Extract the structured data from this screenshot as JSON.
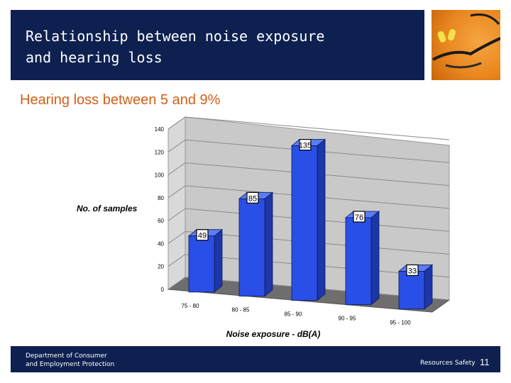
{
  "slide": {
    "title": "Relationship between noise exposure\nand hearing loss",
    "subtitle": "Hearing loss between 5 and 9%"
  },
  "footer": {
    "department": "Department of Consumer\nand Employment Protection",
    "brand": "Resources Safety",
    "page_number": "11"
  },
  "photo": {
    "icon": "safety-glasses-earplugs-icon"
  },
  "colors": {
    "header": "#0d2050",
    "subtitle": "#d35f19",
    "bar_front": "#2a4fe6",
    "bar_side": "#1d36a8",
    "bar_top": "#5b7cf2",
    "wall": "#c9c9c9",
    "floor": "#6e6e6e"
  },
  "chart_data": {
    "type": "bar",
    "categories": [
      "75 - 80",
      "80 - 85",
      "85 - 90",
      "90 - 95",
      "95 - 100"
    ],
    "values": [
      49,
      85,
      135,
      76,
      33
    ],
    "xlabel": "Noise exposure - dB(A)",
    "ylabel": "No. of samples",
    "ylim": [
      0,
      140
    ],
    "yticks": [
      0,
      20,
      40,
      60,
      80,
      100,
      120,
      140
    ],
    "grid": true,
    "three_d": true
  }
}
